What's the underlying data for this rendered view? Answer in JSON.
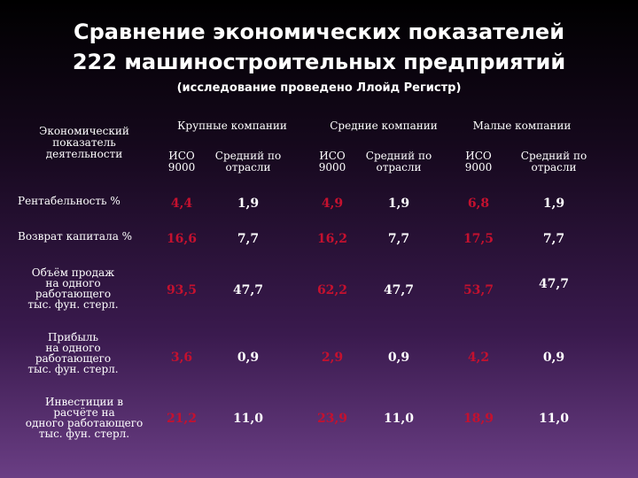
{
  "title": {
    "line1": "Сравнение экономических показателей",
    "line2": "222 машиностроительных предприятий",
    "subtitle": "(исследование проведено Ллойд Регистр)"
  },
  "header": {
    "indicator": [
      "Экономический",
      "показатель",
      "деятельности"
    ],
    "groups": [
      "Крупные компании",
      "Средние компании",
      "Малые компании"
    ],
    "iso": [
      "ИСО",
      "9000"
    ],
    "avg": [
      "Средний по",
      "отрасли"
    ]
  },
  "rows": [
    {
      "label": [
        "Рентабельность %"
      ],
      "values": [
        "4,4",
        "1,9",
        "4,9",
        "1,9",
        "6,8",
        "1,9"
      ]
    },
    {
      "label": [
        "Возврат капитала %"
      ],
      "values": [
        "16,6",
        "7,7",
        "16,2",
        "7,7",
        "17,5",
        "7,7"
      ]
    },
    {
      "label": [
        "Объём продаж",
        "на одного",
        "работающего",
        "тыс. фун. стерл."
      ],
      "values": [
        "93,5",
        "47,7",
        "62,2",
        "47,7",
        "53,7",
        "47,7"
      ]
    },
    {
      "label": [
        "Прибыль",
        "на одного",
        "работающего",
        "тыс. фун. стерл."
      ],
      "values": [
        "3,6",
        "0,9",
        "2,9",
        "0,9",
        "4,2",
        "0,9"
      ]
    },
    {
      "label": [
        "Инвестиции в",
        "расчёте на",
        "одного работающего",
        "тыс. фун. стерл."
      ],
      "values": [
        "21,2",
        "11,0",
        "23,9",
        "11,0",
        "18,9",
        "11,0"
      ]
    }
  ],
  "colors": {
    "highlight": "#c4112f",
    "normal": "#ffffff"
  }
}
